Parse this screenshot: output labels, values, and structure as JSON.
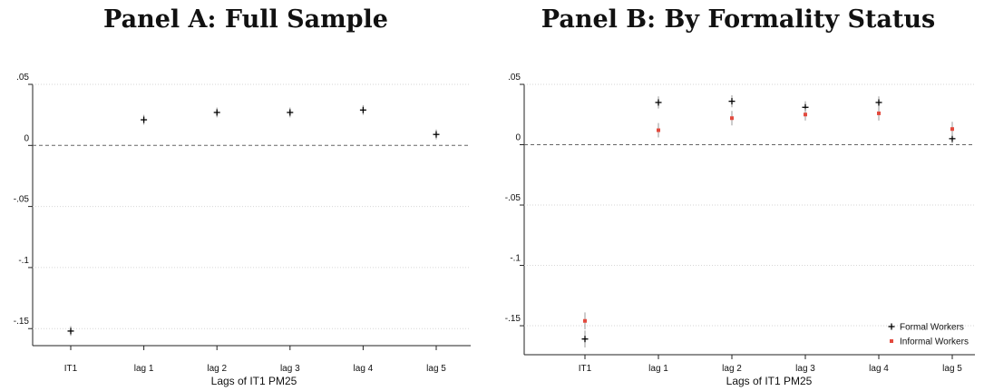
{
  "chart_data": [
    {
      "type": "scatter",
      "title": "Panel A: Full Sample",
      "xlabel": "Lags of IT1 PM25",
      "ylabel": "",
      "categories": [
        "IT1",
        "lag 1",
        "lag 2",
        "lag 3",
        "lag 4",
        "lag 5"
      ],
      "yticks": [
        0.05,
        0,
        -0.05,
        -0.1,
        -0.15
      ],
      "ytick_labels": [
        ".05",
        "0",
        "-.05",
        "-.1",
        "-.15"
      ],
      "ylim": [
        -0.158,
        0.05
      ],
      "reference_line": 0,
      "grid": true,
      "series": [
        {
          "color": "#000000",
          "marker": "cross",
          "values": [
            -0.152,
            0.021,
            0.027,
            0.027,
            0.029,
            0.009
          ],
          "ci_low": [
            -0.156,
            0.017,
            0.023,
            0.023,
            0.025,
            0.005
          ],
          "ci_high": [
            -0.148,
            0.025,
            0.031,
            0.031,
            0.033,
            0.013
          ]
        }
      ]
    },
    {
      "type": "scatter",
      "title": "Panel B: By Formality Status",
      "xlabel": "Lags of IT1 PM25",
      "ylabel": "",
      "categories": [
        "IT1",
        "lag 1",
        "lag 2",
        "lag 3",
        "lag 4",
        "lag 5"
      ],
      "yticks": [
        0.05,
        0,
        -0.05,
        -0.1,
        -0.15
      ],
      "ytick_labels": [
        ".05",
        "0",
        "-.05",
        "-.1",
        "-.15"
      ],
      "ylim": [
        -0.168,
        0.05
      ],
      "reference_line": 0,
      "grid": true,
      "legend_position": "bottom-right",
      "series": [
        {
          "name": "Formal Workers",
          "color": "#000000",
          "marker": "cross",
          "values": [
            -0.161,
            0.035,
            0.036,
            0.031,
            0.035,
            0.005
          ],
          "ci_low": [
            -0.168,
            0.03,
            0.031,
            0.026,
            0.03,
            0.001
          ],
          "ci_high": [
            -0.154,
            0.04,
            0.041,
            0.036,
            0.04,
            0.009
          ]
        },
        {
          "name": "Informal Workers",
          "color": "#e34a3e",
          "marker": "square",
          "values": [
            -0.146,
            0.012,
            0.022,
            0.025,
            0.026,
            0.013
          ],
          "ci_low": [
            -0.153,
            0.006,
            0.016,
            0.02,
            0.02,
            0.007
          ],
          "ci_high": [
            -0.139,
            0.018,
            0.028,
            0.03,
            0.032,
            0.019
          ]
        }
      ]
    }
  ]
}
